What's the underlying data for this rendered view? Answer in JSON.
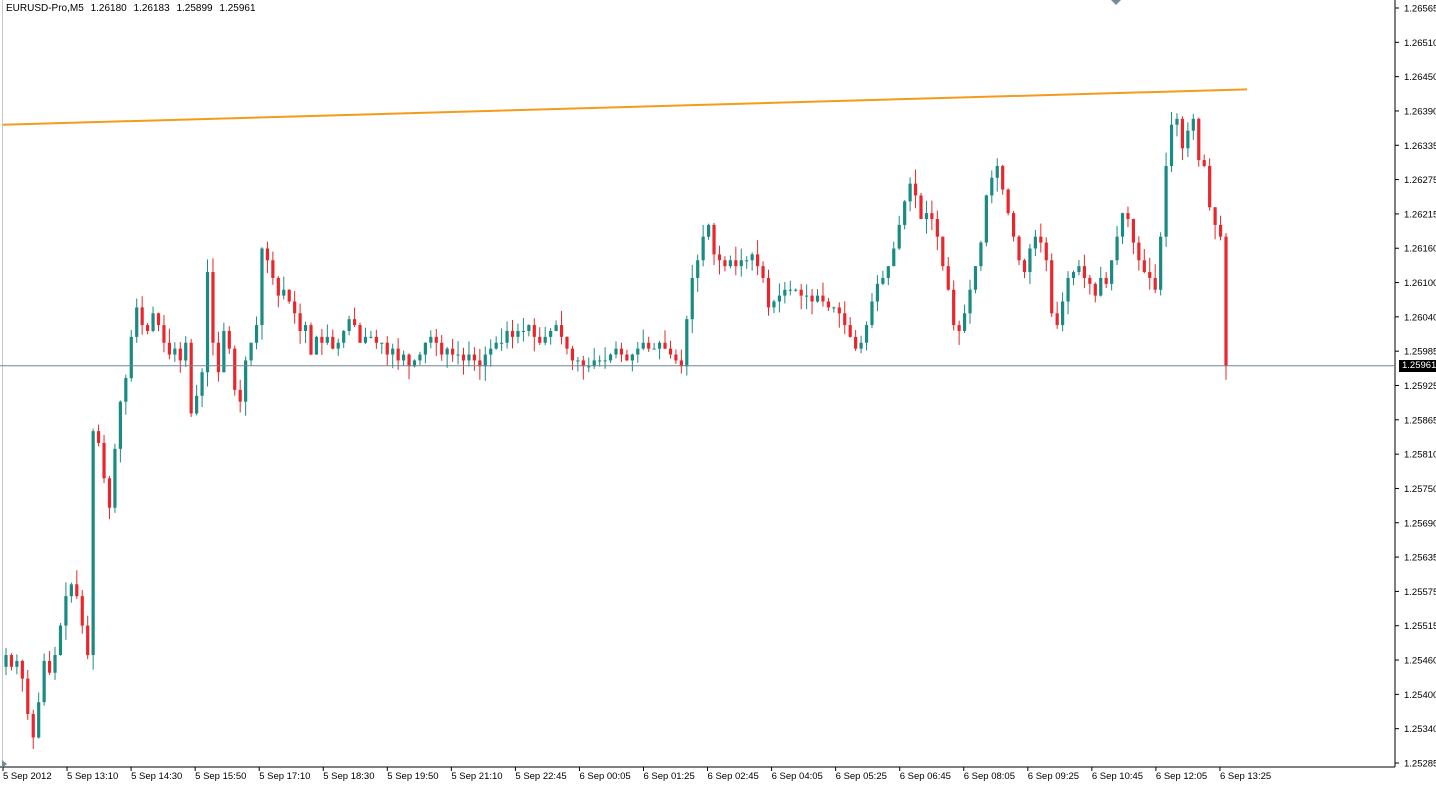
{
  "header": {
    "symbol": "EURUSD-Pro,M5",
    "open": "1.26180",
    "high": "1.26183",
    "low": "1.25899",
    "close": "1.25961"
  },
  "colors": {
    "background": "#ffffff",
    "bull": "#1a8a84",
    "bear": "#e8262b",
    "trendline": "#f39b1c",
    "current_price_line": "#6e8796",
    "axis": "#000000"
  },
  "chart_data": {
    "type": "candlestick",
    "symbol": "EURUSD-Pro",
    "timeframe": "M5",
    "current_price": 1.25961,
    "ylim": [
      1.2528,
      1.2658
    ],
    "y_ticks": [
      "1.26565",
      "1.26510",
      "1.26450",
      "1.26390",
      "1.26335",
      "1.26275",
      "1.26215",
      "1.26160",
      "1.26100",
      "1.26040",
      "1.25985",
      "1.25925",
      "1.25865",
      "1.25810",
      "1.25750",
      "1.25690",
      "1.25635",
      "1.25575",
      "1.25515",
      "1.25460",
      "1.25400",
      "1.25340",
      "1.25285"
    ],
    "x_ticks": [
      "5 Sep 2012",
      "5 Sep 13:10",
      "5 Sep 14:30",
      "5 Sep 15:50",
      "5 Sep 17:10",
      "5 Sep 18:30",
      "5 Sep 19:50",
      "5 Sep 21:10",
      "5 Sep 22:45",
      "6 Sep 00:05",
      "6 Sep 01:25",
      "6 Sep 02:45",
      "6 Sep 04:05",
      "6 Sep 05:25",
      "6 Sep 06:45",
      "6 Sep 08:05",
      "6 Sep 09:25",
      "6 Sep 10:45",
      "6 Sep 12:05",
      "6 Sep 13:25"
    ],
    "trendline": {
      "from": 1.2637,
      "to": 1.2643
    },
    "closes": [
      1.2547,
      1.2545,
      1.2546,
      1.2543,
      1.2537,
      1.2533,
      1.2539,
      1.2546,
      1.2544,
      1.2547,
      1.2552,
      1.2557,
      1.2559,
      1.2557,
      1.2552,
      1.2547,
      1.2585,
      1.2583,
      1.2577,
      1.2572,
      1.2582,
      1.259,
      1.2594,
      1.2601,
      1.2606,
      1.2603,
      1.2602,
      1.2605,
      1.2603,
      1.26,
      1.2598,
      1.2599,
      1.2597,
      1.26,
      1.2588,
      1.2591,
      1.2595,
      1.2612,
      1.26,
      1.2595,
      1.2602,
      1.2599,
      1.2592,
      1.259,
      1.2597,
      1.26,
      1.2603,
      1.2616,
      1.2614,
      1.2611,
      1.2608,
      1.2609,
      1.2607,
      1.2605,
      1.2602,
      1.2603,
      1.2598,
      1.2601,
      1.26,
      1.2601,
      1.2599,
      1.26,
      1.2602,
      1.2604,
      1.2603,
      1.26,
      1.2601,
      1.2601,
      1.26,
      1.26,
      1.2598,
      1.2599,
      1.2597,
      1.2598,
      1.2596,
      1.2597,
      1.2598,
      1.26,
      1.2601,
      1.26,
      1.2598,
      1.2599,
      1.2598,
      1.2598,
      1.2597,
      1.2598,
      1.2597,
      1.2596,
      1.2598,
      1.2599,
      1.26,
      1.26,
      1.2602,
      1.2601,
      1.2602,
      1.2602,
      1.2603,
      1.2601,
      1.26,
      1.2601,
      1.2602,
      1.2603,
      1.2601,
      1.2599,
      1.2597,
      1.2597,
      1.2596,
      1.2596,
      1.2597,
      1.2597,
      1.2597,
      1.2598,
      1.2599,
      1.2598,
      1.2597,
      1.2598,
      1.2599,
      1.26,
      1.2599,
      1.2599,
      1.26,
      1.2599,
      1.2598,
      1.2597,
      1.2596,
      1.2604,
      1.2611,
      1.2614,
      1.2618,
      1.262,
      1.2615,
      1.2614,
      1.2613,
      1.2614,
      1.2613,
      1.2614,
      1.2614,
      1.2615,
      1.2613,
      1.2611,
      1.2606,
      1.2607,
      1.2608,
      1.2609,
      1.2609,
      1.2609,
      1.2608,
      1.2608,
      1.2607,
      1.2608,
      1.2607,
      1.2606,
      1.2606,
      1.2605,
      1.2603,
      1.2601,
      1.2599,
      1.26,
      1.2603,
      1.2607,
      1.261,
      1.2611,
      1.2613,
      1.2616,
      1.262,
      1.2624,
      1.2627,
      1.2625,
      1.2621,
      1.2622,
      1.2621,
      1.2618,
      1.2613,
      1.2609,
      1.2603,
      1.2602,
      1.2605,
      1.2609,
      1.2613,
      1.2617,
      1.2625,
      1.2628,
      1.263,
      1.2626,
      1.2622,
      1.2618,
      1.2614,
      1.2612,
      1.2616,
      1.2618,
      1.2617,
      1.2614,
      1.2605,
      1.2603,
      1.2607,
      1.2611,
      1.2612,
      1.2613,
      1.2611,
      1.261,
      1.2608,
      1.2611,
      1.261,
      1.2614,
      1.2618,
      1.2622,
      1.2621,
      1.2617,
      1.2614,
      1.2612,
      1.2611,
      1.2609,
      1.2618,
      1.263,
      1.2637,
      1.2638,
      1.2633,
      1.2636,
      1.2638,
      1.2631,
      1.263,
      1.2623,
      1.262,
      1.2618,
      1.25961
    ]
  },
  "axis_price_label": "1.25961"
}
